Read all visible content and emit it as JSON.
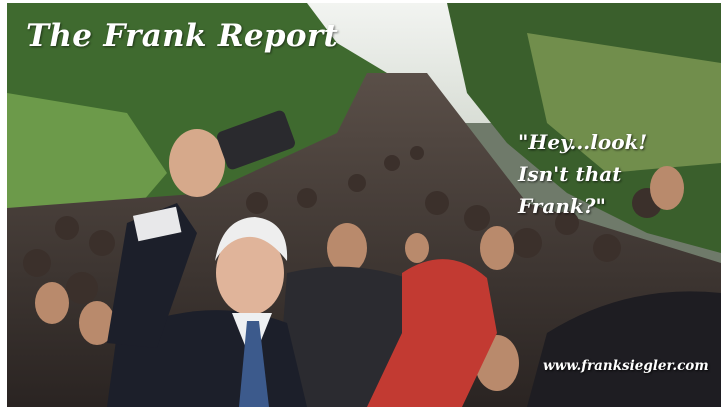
{
  "meme": {
    "title": "The Frank Report",
    "caption_lines": [
      "\"Hey...look!",
      "Isn't that",
      "Frank?\""
    ],
    "watermark_url": "www.franksiegler.com"
  },
  "colors": {
    "sky": "#e8ece6",
    "foliage": "#4f7a3a",
    "crowd": "#2f2a28",
    "suit": "#1c1f2a",
    "red_scarf": "#c23a32",
    "text": "#ffffff"
  }
}
